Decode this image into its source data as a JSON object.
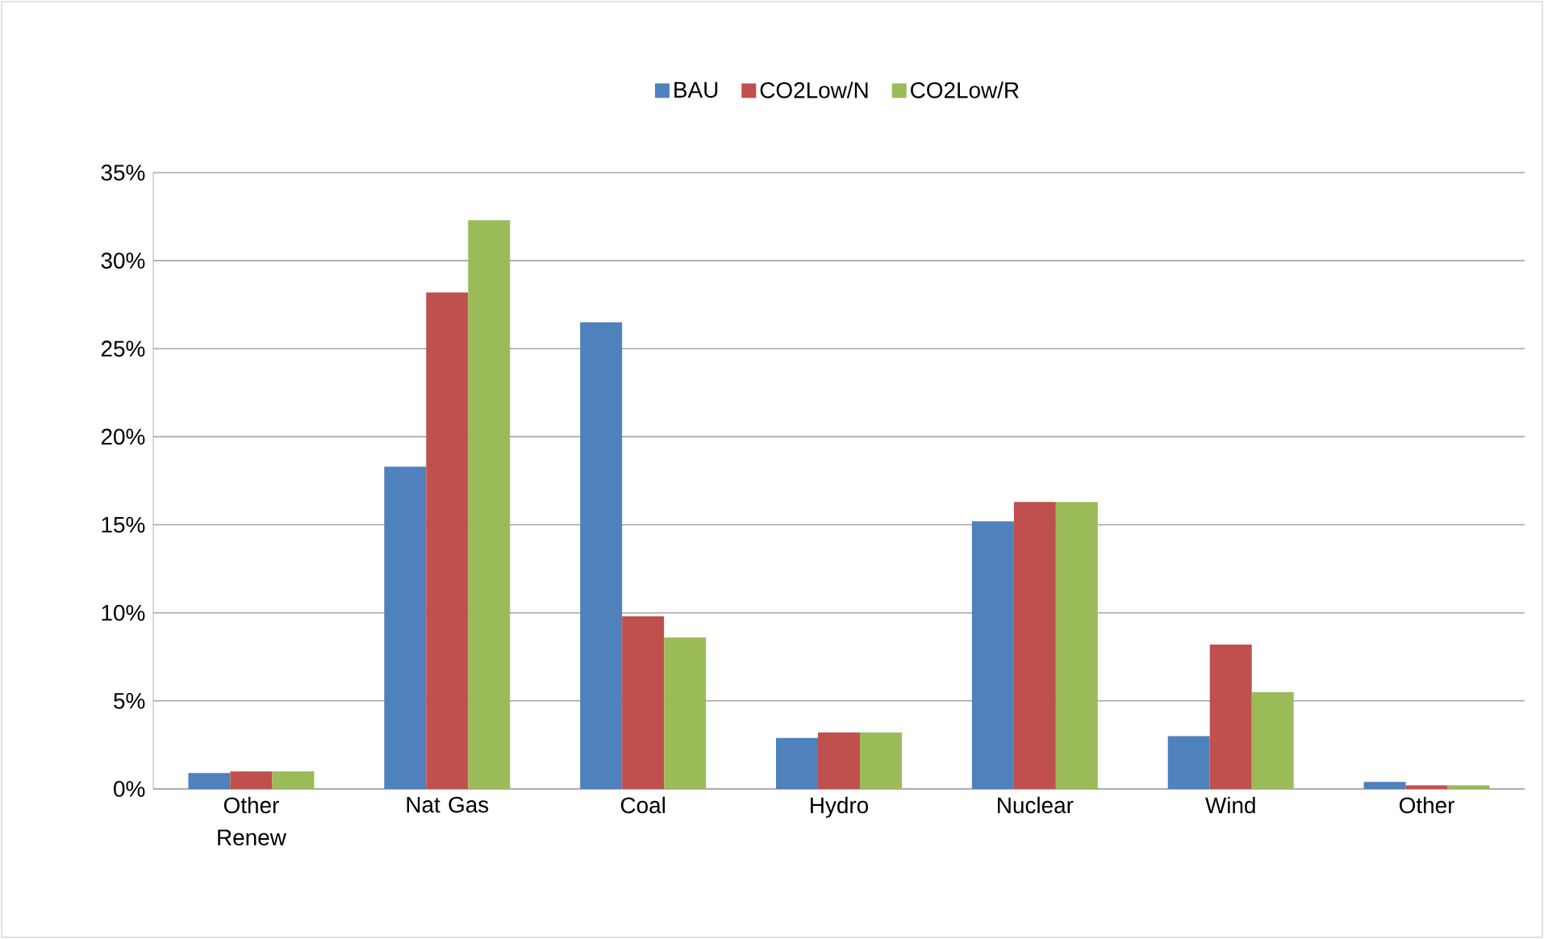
{
  "chart_data": {
    "type": "bar",
    "categories": [
      "Other Renew",
      "Nat Gas",
      "Coal",
      "Hydro",
      "Nuclear",
      "Wind",
      "Other"
    ],
    "series": [
      {
        "name": "BAU",
        "color": "#4f81bd",
        "values": [
          0.9,
          18.3,
          26.5,
          2.9,
          15.2,
          3.0,
          0.4
        ]
      },
      {
        "name": "CO2Low/N",
        "color": "#c0504d",
        "values": [
          1.0,
          28.2,
          9.8,
          3.2,
          16.3,
          8.2,
          0.2
        ]
      },
      {
        "name": "CO2Low/R",
        "color": "#9bbb59",
        "values": [
          1.0,
          32.3,
          8.6,
          3.2,
          16.3,
          5.5,
          0.2
        ]
      }
    ],
    "ylim": [
      0,
      35
    ],
    "yticks": [
      {
        "value": 0,
        "label": "0%"
      },
      {
        "value": 5,
        "label": "5%"
      },
      {
        "value": 10,
        "label": "10%"
      },
      {
        "value": 15,
        "label": "15%"
      },
      {
        "value": 20,
        "label": "20%"
      },
      {
        "value": 25,
        "label": "25%"
      },
      {
        "value": 30,
        "label": "30%"
      },
      {
        "value": 35,
        "label": "35%"
      }
    ],
    "grid": "y",
    "legend": "top"
  }
}
